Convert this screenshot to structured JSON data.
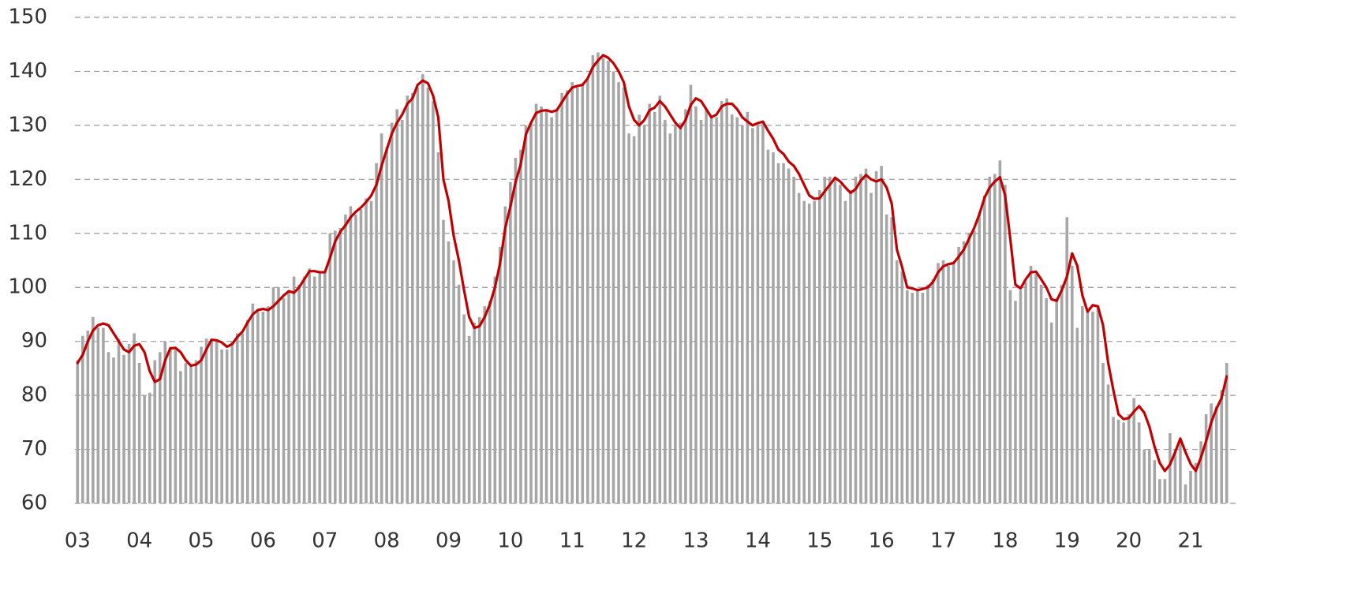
{
  "chart_data": {
    "type": "bar",
    "categories": [
      "03",
      null,
      null,
      null,
      null,
      null,
      null,
      null,
      null,
      null,
      null,
      null,
      "04",
      null,
      null,
      null,
      null,
      null,
      null,
      null,
      null,
      null,
      null,
      null,
      "05",
      null,
      null,
      null,
      null,
      null,
      null,
      null,
      null,
      null,
      null,
      null,
      "06",
      null,
      null,
      null,
      null,
      null,
      null,
      null,
      null,
      null,
      null,
      null,
      "07",
      null,
      null,
      null,
      null,
      null,
      null,
      null,
      null,
      null,
      null,
      null,
      "08",
      null,
      null,
      null,
      null,
      null,
      null,
      null,
      null,
      null,
      null,
      null,
      "09",
      null,
      null,
      null,
      null,
      null,
      null,
      null,
      null,
      null,
      null,
      null,
      "10",
      null,
      null,
      null,
      null,
      null,
      null,
      null,
      null,
      null,
      null,
      null,
      "11",
      null,
      null,
      null,
      null,
      null,
      null,
      null,
      null,
      null,
      null,
      null,
      "12",
      null,
      null,
      null,
      null,
      null,
      null,
      null,
      null,
      null,
      null,
      null,
      "13",
      null,
      null,
      null,
      null,
      null,
      null,
      null,
      null,
      null,
      null,
      null,
      "14",
      null,
      null,
      null,
      null,
      null,
      null,
      null,
      null,
      null,
      null,
      null,
      "15",
      null,
      null,
      null,
      null,
      null,
      null,
      null,
      null,
      null,
      null,
      null,
      "16",
      null,
      null,
      null,
      null,
      null,
      null,
      null,
      null,
      null,
      null,
      null,
      "17",
      null,
      null,
      null,
      null,
      null,
      null,
      null,
      null,
      null,
      null,
      null,
      "18",
      null,
      null,
      null,
      null,
      null,
      null,
      null,
      null,
      null,
      null,
      null,
      "19",
      null,
      null,
      null,
      null,
      null,
      null,
      null,
      null,
      null,
      null,
      null,
      "20",
      null,
      null,
      null,
      null,
      null,
      null,
      null,
      null,
      null,
      null,
      null,
      "21",
      null,
      null,
      null,
      null,
      null,
      null,
      null
    ],
    "series": [
      {
        "type": "bar",
        "color": "#a6a6a6",
        "values": [
          86.5,
          91,
          92,
          94.5,
          92.5,
          92.5,
          88,
          87,
          90.5,
          87.5,
          89.5,
          91.5,
          86,
          80,
          80.5,
          86.5,
          88,
          90,
          89,
          88.5,
          84.5,
          86,
          85.5,
          86.5,
          89,
          90.5,
          90.5,
          90,
          88.5,
          88.5,
          90,
          91.5,
          91.5,
          94,
          97,
          96,
          95.5,
          96.5,
          100,
          100,
          98,
          99,
          102,
          100.5,
          102,
          103.5,
          102,
          103,
          103,
          110,
          110.5,
          111,
          113.5,
          115,
          113.5,
          114.5,
          116.5,
          116,
          123,
          128.5,
          126,
          130.5,
          133,
          131,
          135.5,
          136,
          137,
          139.5,
          137,
          134.5,
          125,
          112.5,
          108.5,
          105,
          100.5,
          95,
          91,
          93.5,
          94.5,
          96.5,
          97.5,
          102,
          107.5,
          115,
          119.5,
          124,
          125.5,
          130,
          130.5,
          134,
          133.5,
          133,
          131.5,
          133,
          136,
          136.5,
          138,
          137,
          137.5,
          138.5,
          143,
          143.5,
          142.5,
          142,
          140,
          138,
          137,
          128.5,
          128,
          132,
          130,
          134,
          132.5,
          135.5,
          131,
          128.5,
          130,
          130.5,
          133,
          137.5,
          133.5,
          131,
          133,
          131.5,
          131.5,
          134.5,
          135,
          132,
          131.5,
          130,
          132.5,
          129.5,
          130,
          130.5,
          125.5,
          125,
          123,
          123,
          122,
          120.5,
          117.5,
          116,
          115.5,
          116,
          118,
          120.5,
          120.5,
          120.5,
          119,
          116,
          118,
          120.5,
          121,
          122,
          117.5,
          121.5,
          122.5,
          113.5,
          113,
          105,
          103,
          99.5,
          99,
          99.5,
          99,
          100.5,
          101.5,
          104.5,
          105,
          104,
          104.5,
          107.5,
          108.5,
          110,
          110.5,
          114,
          117,
          120.5,
          121,
          123.5,
          119,
          99.5,
          97.5,
          99.5,
          101,
          104,
          102.5,
          100.5,
          98,
          93.5,
          98,
          100.5,
          113,
          104,
          92.5,
          96.5,
          96,
          95.5,
          96.5,
          86,
          82,
          76,
          75.5,
          75,
          76.5,
          79.5,
          75,
          70,
          70,
          68,
          64.5,
          64.5,
          73,
          70,
          71.5,
          63.5,
          66,
          67.5,
          71.5,
          76.5,
          78.5,
          78,
          81,
          86
        ]
      },
      {
        "type": "line",
        "color": "#c00000",
        "values": [
          86,
          87.5,
          90,
          92,
          93,
          93.3,
          93,
          91.5,
          90,
          88.5,
          88,
          89.2,
          89.5,
          88,
          84.5,
          82.5,
          83,
          86.5,
          88.7,
          88.8,
          88,
          86.5,
          85.5,
          85.7,
          86.5,
          88.5,
          90.3,
          90.2,
          89.8,
          89,
          89.5,
          90.8,
          91.8,
          93.5,
          95,
          95.8,
          96,
          95.8,
          96.5,
          97.5,
          98.5,
          99.3,
          99,
          100,
          101.5,
          103,
          103,
          102.8,
          102.8,
          105.5,
          108.5,
          110.3,
          111.5,
          113,
          114,
          114.8,
          115.8,
          117,
          119,
          122.5,
          125.5,
          128.5,
          130.5,
          132,
          134,
          135,
          137.5,
          138.3,
          137.8,
          135.5,
          131.5,
          120,
          116,
          109.5,
          105,
          99.5,
          94.5,
          92.5,
          92.8,
          94.5,
          96.8,
          100,
          104.5,
          111,
          115,
          119.5,
          122.8,
          128.3,
          130.5,
          132.3,
          132.7,
          132.8,
          132.5,
          132.8,
          134.3,
          135.8,
          137,
          137.3,
          137.5,
          138.7,
          140.8,
          142,
          143,
          142.5,
          141.5,
          140,
          138,
          133.5,
          131,
          130,
          131,
          132.8,
          133.3,
          134.5,
          133.5,
          132,
          130.5,
          129.5,
          131,
          133.8,
          135,
          134.5,
          133,
          131.5,
          132,
          133.5,
          134,
          134,
          133,
          131.5,
          130.7,
          130,
          130.4,
          130.7,
          129,
          127.5,
          125.5,
          124.7,
          123.3,
          122.5,
          121,
          119,
          117,
          116.4,
          116.5,
          117.8,
          119,
          120.3,
          119.6,
          118.5,
          117.5,
          118.2,
          119.8,
          120.8,
          120,
          119.6,
          120,
          118.5,
          115.5,
          107,
          103.8,
          100,
          99.8,
          99.5,
          99.7,
          100,
          101,
          102.8,
          103.9,
          104.3,
          104.5,
          105.7,
          107,
          109,
          111,
          113.5,
          116.6,
          118.5,
          119.6,
          120.4,
          117,
          109,
          100.5,
          99.8,
          101.5,
          102.8,
          102.9,
          101.5,
          100,
          97.8,
          97.5,
          99.5,
          102,
          106.3,
          104,
          98.5,
          95.5,
          96.7,
          96.5,
          93,
          86,
          81,
          76.5,
          75.6,
          75.8,
          77,
          78,
          76.8,
          74.2,
          70.5,
          67.5,
          66,
          67.2,
          69.5,
          72,
          69.5,
          67.3,
          66,
          68.5,
          71.5,
          75,
          77.5,
          79.5,
          83.5
        ]
      }
    ],
    "ylim": [
      60,
      150
    ],
    "yticks": [
      60,
      70,
      80,
      90,
      100,
      110,
      120,
      130,
      140,
      150
    ],
    "grid": true
  }
}
